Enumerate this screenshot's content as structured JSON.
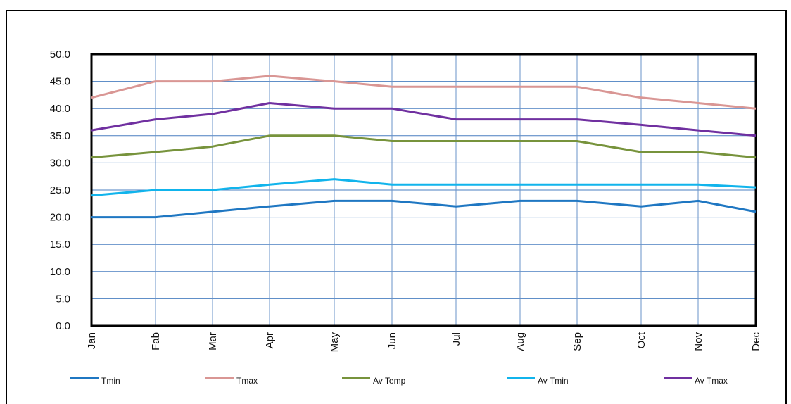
{
  "chart_data": {
    "type": "line",
    "title": "",
    "xlabel": "",
    "ylabel": "",
    "categories": [
      "Jan",
      "Fab",
      "Mar",
      "Apr",
      "May",
      "Jun",
      "Jul",
      "Aug",
      "Sep",
      "Oct",
      "Nov",
      "Dec"
    ],
    "y_tick_labels": [
      "0.0",
      "5.0",
      "10.0",
      "15.0",
      "20.0",
      "25.0",
      "30.0",
      "35.0",
      "40.0",
      "45.0",
      "50.0"
    ],
    "ylim": [
      0,
      50
    ],
    "grid": true,
    "legend_position": "bottom",
    "series": [
      {
        "name": "Tmin",
        "color": "#1f77c2",
        "values": [
          20,
          20,
          21,
          22,
          23,
          23,
          22,
          23,
          23,
          22,
          23,
          21
        ]
      },
      {
        "name": "Tmax",
        "color": "#d99694",
        "values": [
          42,
          45,
          45,
          46,
          45,
          44,
          44,
          44,
          44,
          42,
          41,
          40
        ]
      },
      {
        "name": "Av Temp",
        "color": "#77933c",
        "values": [
          31,
          32,
          33,
          35,
          35,
          34,
          34,
          34,
          34,
          32,
          32,
          31
        ]
      },
      {
        "name": "Av Tmin",
        "color": "#11b4ec",
        "values": [
          24,
          25,
          25,
          26,
          27,
          26,
          26,
          26,
          26,
          26,
          26,
          25.5
        ]
      },
      {
        "name": "Av Tmax",
        "color": "#7030a0",
        "values": [
          36,
          38,
          39,
          41,
          40,
          40,
          38,
          38,
          38,
          37,
          36,
          35
        ]
      }
    ]
  }
}
